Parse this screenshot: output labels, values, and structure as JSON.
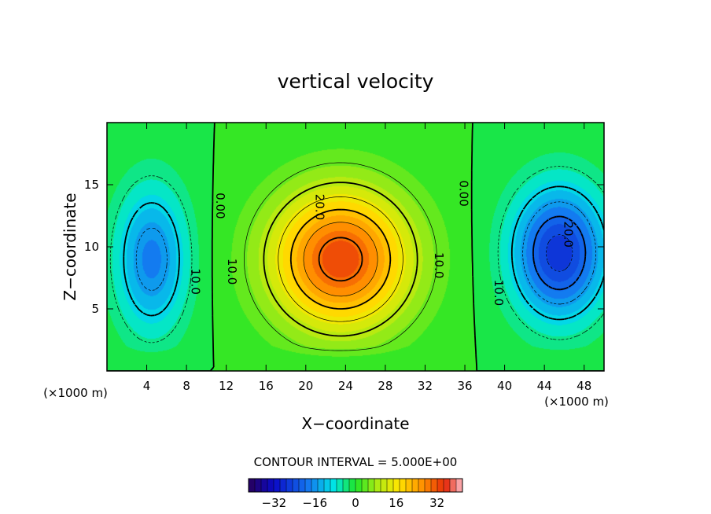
{
  "chart_data": {
    "type": "heatmap",
    "title": "vertical velocity",
    "xlabel": "X−coordinate",
    "ylabel": "Z−coordinate",
    "x_unit": "(×1000 m)",
    "x_unit_right": "(×1000 m)",
    "xlim": [
      0,
      50
    ],
    "ylim": [
      0,
      20
    ],
    "x_ticks": [
      4,
      8,
      12,
      16,
      20,
      24,
      28,
      32,
      36,
      40,
      44,
      48
    ],
    "y_ticks": [
      5,
      10,
      15
    ],
    "contour_interval_label": "CONTOUR INTERVAL = 5.000E+00",
    "contour_interval": 5.0,
    "contour_labels": [
      {
        "text": "0.00",
        "x": 11.0,
        "y": 13.3
      },
      {
        "text": "0.00",
        "x": 35.5,
        "y": 14.3
      },
      {
        "text": "10.0",
        "x": 8.5,
        "y": 7.2
      },
      {
        "text": "10.0",
        "x": 12.2,
        "y": 8.0
      },
      {
        "text": "20.0",
        "x": 21.0,
        "y": 13.2
      },
      {
        "text": "10.0",
        "x": 33.0,
        "y": 8.5
      },
      {
        "text": "10.0",
        "x": 39.0,
        "y": 6.3
      },
      {
        "text": "20.0",
        "x": 46.0,
        "y": 11.0
      }
    ],
    "features": [
      {
        "name": "updraft",
        "x": 23.5,
        "z": 9.0,
        "peak": 33,
        "sx": 5.0,
        "sz": 4.0
      },
      {
        "name": "downdraft-left",
        "x": 4.5,
        "z": 9.0,
        "peak": -18,
        "sx": 2.6,
        "sz": 4.2
      },
      {
        "name": "downdraft-right",
        "x": 45.5,
        "z": 9.5,
        "peak": -27,
        "sx": 3.4,
        "sz": 3.8
      }
    ],
    "colorbar": {
      "min": -42,
      "max": 42,
      "ticks": [
        -32,
        -16,
        0,
        16,
        32
      ],
      "tick_labels": [
        "−32",
        "−16",
        "0",
        "16",
        "32"
      ]
    },
    "grid": false,
    "legend": "none"
  }
}
